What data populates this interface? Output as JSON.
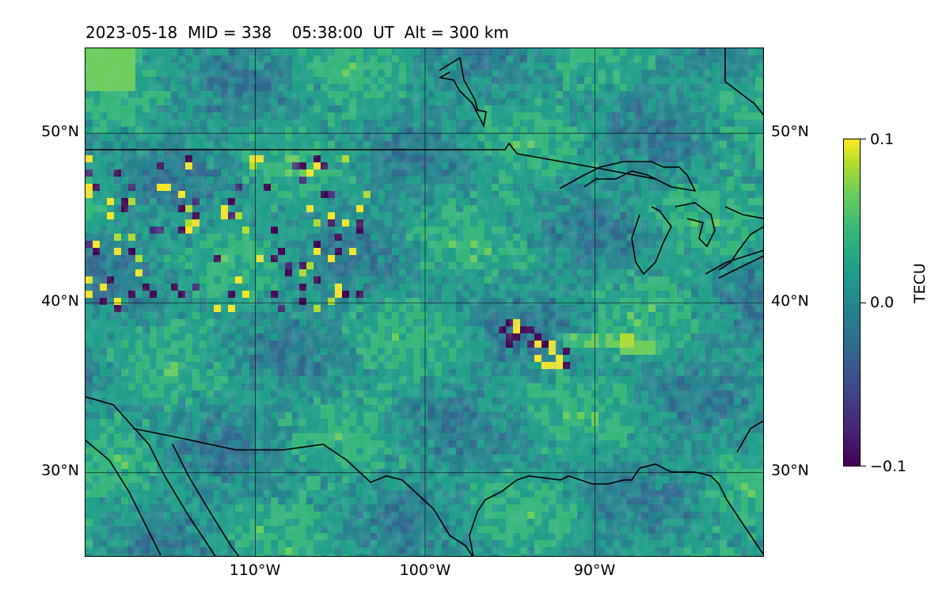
{
  "header": {
    "title": "2023-05-18  MID = 338    05:38:00  UT  Alt = 300 km"
  },
  "map": {
    "lat_labels": [
      "50°N",
      "40°N",
      "30°N"
    ],
    "lon_labels": [
      "110°W",
      "100°W",
      "90°W"
    ],
    "lon_range_deg": [
      -120,
      -80
    ],
    "lat_range_deg": [
      25,
      55
    ],
    "gridlines_lon_deg": [
      -110,
      -100,
      -90
    ],
    "gridlines_lat_deg": [
      50,
      40,
      30
    ],
    "projection": "plate carree",
    "field": "detrended TEC perturbation map",
    "overlay": "coastlines and country borders"
  },
  "colorbar": {
    "label": "TECU",
    "tick_labels": [
      "0.1",
      "0.0",
      "−0.1"
    ],
    "min": -0.1,
    "max": 0.1,
    "colormap": "viridis",
    "colors": [
      "#440154",
      "#3e4989",
      "#26828e",
      "#35b779",
      "#fde725"
    ]
  }
}
